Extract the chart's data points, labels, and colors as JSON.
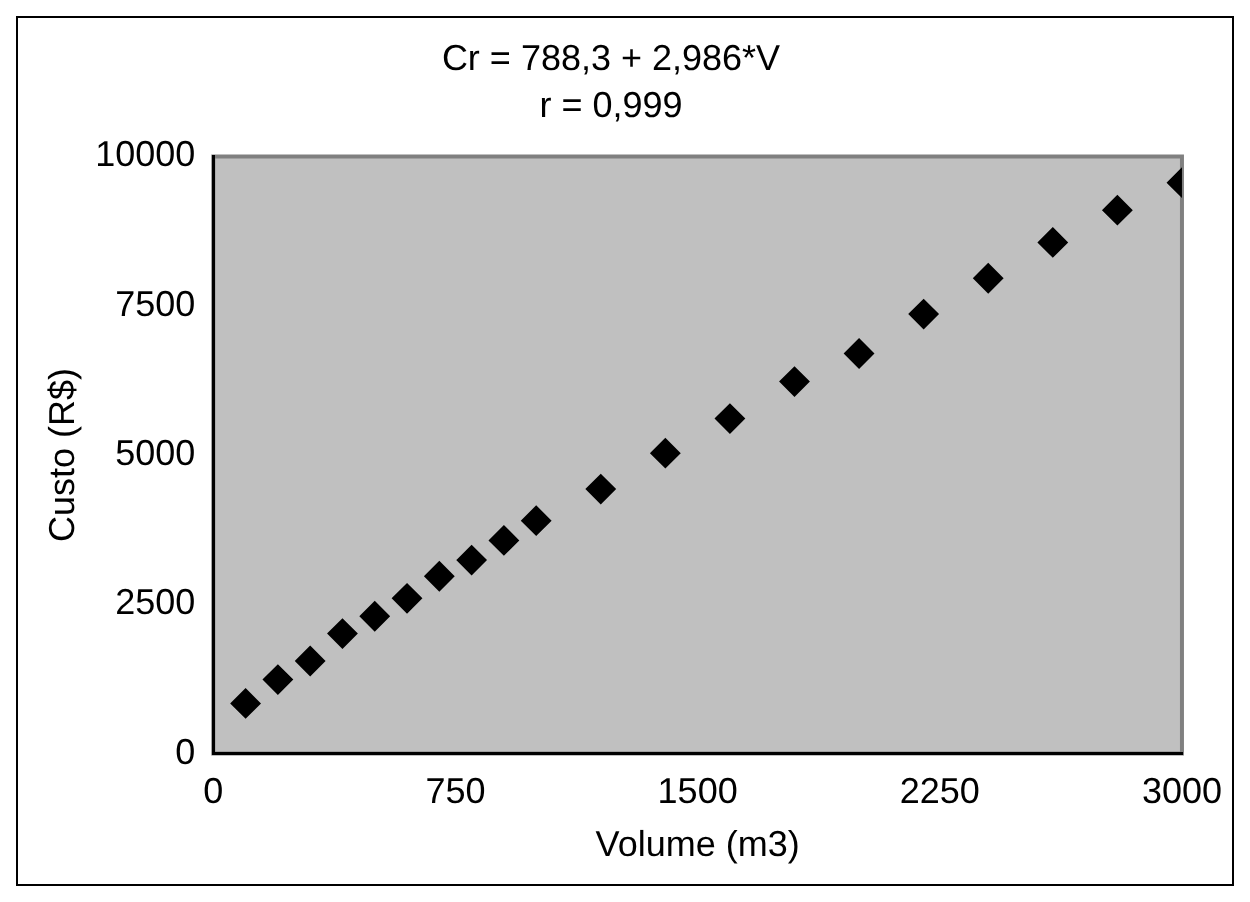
{
  "chart_data": {
    "type": "scatter",
    "title": "Cr = 788,3 + 2,986*V",
    "subtitle": "r = 0,999",
    "xlabel": "Volume (m3)",
    "ylabel": "Custo (R$)",
    "x": [
      100,
      200,
      300,
      400,
      500,
      600,
      700,
      800,
      900,
      1000,
      1200,
      1400,
      1600,
      1800,
      2000,
      2200,
      2400,
      2600,
      2800,
      3000
    ],
    "series": [
      {
        "color": "#000000",
        "values": [
          840,
          1240,
          1550,
          2010,
          2300,
          2600,
          2970,
          3240,
          3570,
          3900,
          4430,
          5030,
          5610,
          6230,
          6700,
          7360,
          7960,
          8560,
          9100,
          9560
        ]
      }
    ],
    "xlim": [
      0,
      3000
    ],
    "xticks": [
      0,
      750,
      1500,
      2250,
      3000
    ],
    "ylim": [
      0,
      10000
    ],
    "yticks": [
      0,
      2500,
      5000,
      7500,
      10000
    ],
    "grid": false,
    "legend": false,
    "marker": "diamond"
  }
}
